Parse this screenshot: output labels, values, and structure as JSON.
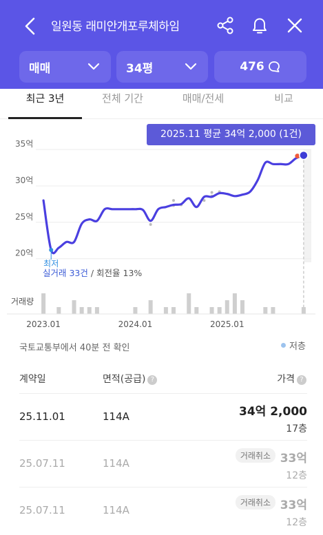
{
  "header": {
    "title": "일원동 래미안개포루체하임",
    "filters": {
      "deal_type": "매매",
      "size": "34평",
      "comments_count": "476"
    }
  },
  "tabs": [
    "최근 3년",
    "전체 기간",
    "매매/전세",
    "비교"
  ],
  "active_tab": "최근 3년",
  "tooltip": "2025.11 평균 34억 2,000 (1건)",
  "chart_labels": {
    "lowest": "최저",
    "stats_link": "실거래 33건",
    "stats_rest": " / 회전율 13%",
    "volume_label": "거래량"
  },
  "chart_data": {
    "type": "line",
    "ylabel": "",
    "yunit": "억",
    "yticks": [
      20,
      25,
      30,
      35
    ],
    "ytick_labels": [
      "20억",
      "25억",
      "30억",
      "35억"
    ],
    "ylim": [
      19.5,
      37
    ],
    "xlim": [
      "2022-12",
      "2025-12"
    ],
    "xticks": [
      "2023-01",
      "2024-01",
      "2025-01"
    ],
    "xtick_labels": [
      "2023.01",
      "2024.01",
      "2025.01"
    ],
    "series": [
      {
        "x": [
          "2023-01",
          "2023-02",
          "2023-03",
          "2023-04",
          "2023-05",
          "2023-06",
          "2023-07",
          "2023-08",
          "2023-09",
          "2023-10",
          "2023-11",
          "2023-12",
          "2024-01",
          "2024-02",
          "2024-03",
          "2024-04",
          "2024-05",
          "2024-06",
          "2024-07",
          "2024-08",
          "2024-09",
          "2024-10",
          "2024-11",
          "2024-12",
          "2025-01",
          "2025-02",
          "2025-03",
          "2025-04",
          "2025-05",
          "2025-06",
          "2025-07",
          "2025-08",
          "2025-09",
          "2025-10",
          "2025-11"
        ],
        "values": [
          28,
          21.2,
          21.5,
          22.3,
          22.3,
          24.8,
          25.4,
          25.2,
          26.8,
          26.8,
          26.8,
          26.8,
          26.8,
          26.7,
          25.2,
          26.8,
          27.1,
          27.4,
          27.5,
          28.3,
          27.1,
          28.5,
          28.5,
          29.0,
          28.9,
          28.6,
          28.8,
          29.2,
          30.8,
          33.2,
          33.0,
          33.0,
          33.0,
          33.8,
          34.2
        ]
      }
    ],
    "volume": [
      3,
      0,
      1,
      0,
      2,
      1,
      1,
      1,
      0,
      0,
      0,
      0,
      1,
      0,
      2,
      0,
      1,
      1,
      0,
      3,
      1,
      0,
      1,
      1,
      2,
      3,
      2,
      0,
      0,
      1,
      1,
      0,
      0,
      0,
      1
    ],
    "points": [
      {
        "x": "2024-03",
        "y": 24.7
      },
      {
        "x": "2024-06",
        "y": 27.3
      },
      {
        "x": "2024-06",
        "y": 28.0
      },
      {
        "x": "2024-07",
        "y": 27.4
      },
      {
        "x": "2024-10",
        "y": 28.0
      },
      {
        "x": "2024-11",
        "y": 28.6
      },
      {
        "x": "2024-11",
        "y": 29.1
      },
      {
        "x": "2024-12",
        "y": 29.2
      }
    ],
    "lowest_point": {
      "x": "2023-02",
      "y": 21.2
    },
    "highlight_point": {
      "x": "2025-11",
      "y": 34.2
    }
  },
  "source_text": "국토교통부에서 40분 전 확인",
  "legend_low_floor": "저층",
  "table": {
    "headers": {
      "date": "계약일",
      "area": "면적(공급)",
      "price": "가격"
    },
    "rows": [
      {
        "date": "25.11.01",
        "area": "114A",
        "price": "34억 2,000",
        "floor": "17층",
        "cancelled": false,
        "badge": ""
      },
      {
        "date": "25.07.11",
        "area": "114A",
        "price": "33억",
        "floor": "12층",
        "cancelled": true,
        "badge": "거래취소"
      },
      {
        "date": "25.07.11",
        "area": "114A",
        "price": "33억",
        "floor": "12층",
        "cancelled": true,
        "badge": "거래취소"
      }
    ]
  },
  "colors": {
    "primary": "#5b55e6",
    "filter_bg": "#6e68ea",
    "line": "#4a3fe0",
    "highlight": "#f05a3a",
    "volume": "#cfcfcf",
    "future_shade": "#f2f2f2"
  }
}
